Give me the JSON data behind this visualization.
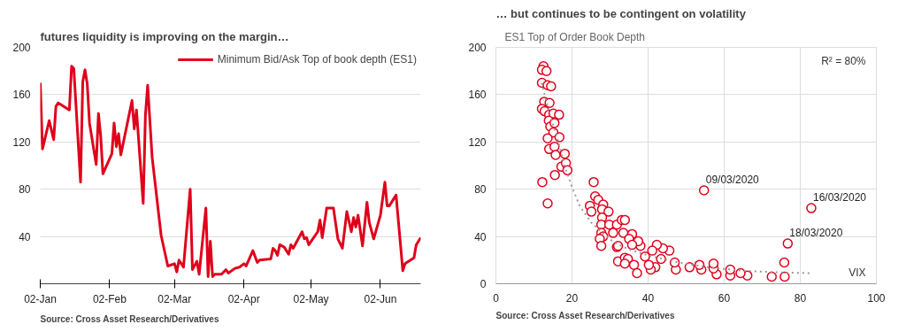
{
  "chart_data": [
    {
      "type": "line",
      "title": "futures liquidity is improving on the margin…",
      "series": [
        {
          "name": "Minimum Bid/Ask Top of book depth (ES1)",
          "color": "#e0001b",
          "x": [
            "2020-01-02",
            "2020-01-03",
            "2020-01-06",
            "2020-01-08",
            "2020-01-09",
            "2020-01-10",
            "2020-01-15",
            "2020-01-16",
            "2020-01-17",
            "2020-01-20",
            "2020-01-21",
            "2020-01-22",
            "2020-01-23",
            "2020-01-24",
            "2020-01-27",
            "2020-01-28",
            "2020-01-29",
            "2020-01-30",
            "2020-02-03",
            "2020-02-04",
            "2020-02-05",
            "2020-02-06",
            "2020-02-07",
            "2020-02-12",
            "2020-02-13",
            "2020-02-14",
            "2020-02-17",
            "2020-02-18",
            "2020-02-19",
            "2020-02-21",
            "2020-02-25",
            "2020-02-28",
            "2020-03-02",
            "2020-03-03",
            "2020-03-04",
            "2020-03-06",
            "2020-03-09",
            "2020-03-10",
            "2020-03-12",
            "2020-03-13",
            "2020-03-16",
            "2020-03-17",
            "2020-03-18",
            "2020-03-19",
            "2020-03-20",
            "2020-03-23",
            "2020-03-25",
            "2020-03-26",
            "2020-03-29",
            "2020-03-31",
            "2020-04-02",
            "2020-04-03",
            "2020-04-06",
            "2020-04-08",
            "2020-04-09",
            "2020-04-14",
            "2020-04-15",
            "2020-04-16",
            "2020-04-17",
            "2020-04-18",
            "2020-04-20",
            "2020-04-22",
            "2020-04-23",
            "2020-04-24",
            "2020-04-28",
            "2020-04-29",
            "2020-04-30",
            "2020-05-01",
            "2020-05-05",
            "2020-05-06",
            "2020-05-07",
            "2020-05-09",
            "2020-05-12",
            "2020-05-14",
            "2020-05-16",
            "2020-05-18",
            "2020-05-20",
            "2020-05-21",
            "2020-05-22",
            "2020-05-23",
            "2020-05-25",
            "2020-05-27",
            "2020-05-28",
            "2020-05-30",
            "2020-06-02",
            "2020-06-04",
            "2020-06-05",
            "2020-06-06",
            "2020-06-09",
            "2020-06-12",
            "2020-06-13",
            "2020-06-17",
            "2020-06-18",
            "2020-06-20"
          ],
          "values": [
            170,
            114,
            138,
            122,
            150,
            153,
            147,
            184,
            182,
            86,
            171,
            181,
            169,
            136,
            101,
            144,
            125,
            93,
            110,
            136,
            116,
            127,
            109,
            155,
            131,
            147,
            68,
            143,
            168,
            107,
            41,
            15,
            17,
            10,
            20,
            14,
            80,
            12,
            19,
            8,
            64,
            6,
            36,
            6,
            8,
            8,
            12,
            9,
            13,
            14,
            17,
            15,
            28,
            18,
            20,
            21,
            30,
            28,
            24,
            33,
            31,
            25,
            33,
            30,
            44,
            38,
            39,
            33,
            44,
            54,
            39,
            64,
            64,
            38,
            30,
            61,
            44,
            56,
            48,
            58,
            32,
            69,
            52,
            38,
            58,
            86,
            66,
            66,
            75,
            11,
            17,
            22,
            33,
            39
          ]
        }
      ],
      "xlim": [
        "2020-01-02",
        "2020-06-20"
      ],
      "xticks": [
        {
          "value": "2020-01-02",
          "label": "02-Jan"
        },
        {
          "value": "2020-02-02",
          "label": "02-Feb"
        },
        {
          "value": "2020-03-02",
          "label": "02-Mar"
        },
        {
          "value": "2020-04-02",
          "label": "02-Apr"
        },
        {
          "value": "2020-05-02",
          "label": "02-May"
        },
        {
          "value": "2020-06-02",
          "label": "02-Jun"
        }
      ],
      "ylim": [
        0,
        200
      ],
      "yticks": [
        40,
        80,
        120,
        160,
        200
      ],
      "grid": "y",
      "legend": "top right",
      "annotations": [
        "Source: Cross Asset Research/Derivatives"
      ]
    },
    {
      "type": "scatter",
      "title": "… but continues to be contingent on volatility",
      "ylabel": "ES1 Top of Order Book Depth",
      "xlabel": "VIX",
      "series": [
        {
          "type": "scatter",
          "color": "#e0001b",
          "marker": "circle",
          "x": [
            12.5,
            12.1,
            13.3,
            12.1,
            13.6,
            14.5,
            12.7,
            14.1,
            12.1,
            12.8,
            14.0,
            15.1,
            16.6,
            13.9,
            14.3,
            15.4,
            15.1,
            16.7,
            13.6,
            14.0,
            15.4,
            15.7,
            18.1,
            17.2,
            18.4,
            18.8,
            15.5,
            12.2,
            13.6,
            25.7,
            24.7,
            26.1,
            26.9,
            25.1,
            28.2,
            27.9,
            29.6,
            27.9,
            27.7,
            29.8,
            27.7,
            28.2,
            27.3,
            27.7,
            31.8,
            30.8,
            33.1,
            33.9,
            33.5,
            31.8,
            32.1,
            33.9,
            34.7,
            33.9,
            36.3,
            54.7,
            82.9,
            76.7,
            75.8,
            75.9,
            72.5,
            66.1,
            64.3,
            61.6,
            61.6,
            58.0,
            57.2,
            57.2,
            54.0,
            53.5,
            50.9,
            47.3,
            47.0,
            45.6,
            43.9,
            42.3,
            41.1,
            43.4,
            41.9,
            40.7,
            40.2,
            39.2,
            38.0,
            37.4,
            35.8,
            35.0,
            32.1,
            37.1,
            35.8
          ],
          "values": [
            184,
            181,
            180,
            170,
            168,
            167,
            154,
            153,
            148,
            146,
            143,
            144,
            143,
            138,
            133,
            136,
            128,
            124,
            123,
            114,
            116,
            109,
            110,
            99,
            102,
            96,
            92,
            86,
            68,
            86,
            66,
            74,
            71,
            61,
            67,
            63,
            61,
            56,
            50,
            50,
            43,
            40,
            38,
            32,
            50,
            43,
            54,
            54,
            43,
            31,
            19,
            22,
            21,
            17,
            16,
            79,
            64,
            34,
            18,
            6,
            6,
            7,
            9,
            7,
            12,
            8,
            13,
            17,
            12,
            16,
            14,
            12,
            18,
            28,
            30,
            33,
            28,
            21,
            14,
            12,
            16,
            23,
            32,
            36,
            42,
            38,
            32,
            9,
            33
          ]
        },
        {
          "type": "line",
          "color": "#999999",
          "line_style": "dotted",
          "x": [
            12,
            14,
            16,
            18,
            20,
            22,
            25,
            28,
            31,
            35,
            40,
            48,
            56,
            65,
            75,
            83
          ],
          "values": [
            170,
            145,
            125,
            100,
            82,
            66,
            52,
            43,
            35,
            29,
            24,
            18,
            14,
            11,
            9.5,
            9
          ]
        }
      ],
      "xlim": [
        0,
        100
      ],
      "xticks": [
        0,
        20,
        40,
        60,
        80,
        100
      ],
      "ylim": [
        0,
        200
      ],
      "yticks": [
        0,
        40,
        80,
        120,
        160,
        200
      ],
      "grid": true,
      "annotations": [
        {
          "text": "09/03/2020",
          "x": 54.7,
          "y": 79
        },
        {
          "text": "16/03/2020",
          "x": 82.9,
          "y": 64
        },
        {
          "text": "18/03/2020",
          "x": 76.7,
          "y": 34
        },
        "R² = 80%",
        "Source: Cross Asset Research/Derivatives"
      ]
    }
  ]
}
